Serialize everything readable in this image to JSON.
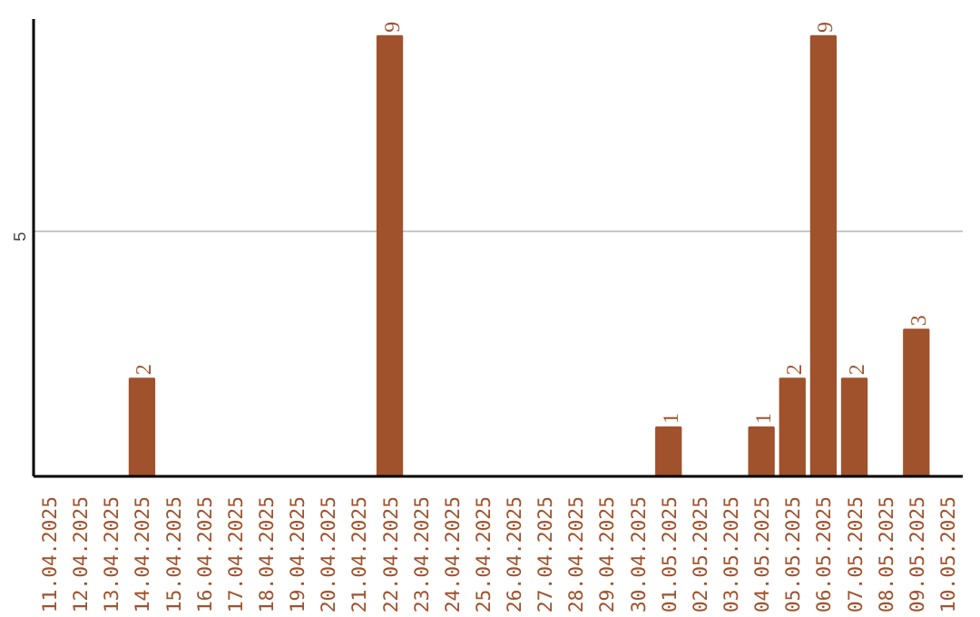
{
  "chart_data": {
    "type": "bar",
    "categories": [
      "11.04.2025",
      "12.04.2025",
      "13.04.2025",
      "14.04.2025",
      "15.04.2025",
      "16.04.2025",
      "17.04.2025",
      "18.04.2025",
      "19.04.2025",
      "20.04.2025",
      "21.04.2025",
      "22.04.2025",
      "23.04.2025",
      "24.04.2025",
      "25.04.2025",
      "26.04.2025",
      "27.04.2025",
      "28.04.2025",
      "29.04.2025",
      "30.04.2025",
      "01.05.2025",
      "02.05.2025",
      "03.05.2025",
      "04.05.2025",
      "05.05.2025",
      "06.05.2025",
      "07.05.2025",
      "08.05.2025",
      "09.05.2025",
      "10.05.2025"
    ],
    "values": [
      0,
      0,
      0,
      2,
      0,
      0,
      0,
      0,
      0,
      0,
      0,
      9,
      0,
      0,
      0,
      0,
      0,
      0,
      0,
      0,
      1,
      0,
      0,
      1,
      2,
      9,
      2,
      0,
      3,
      0
    ],
    "value_labels": [
      null,
      null,
      null,
      "2",
      null,
      null,
      null,
      null,
      null,
      null,
      null,
      "9",
      null,
      null,
      null,
      null,
      null,
      null,
      null,
      null,
      "1",
      null,
      null,
      "1",
      "2",
      "9",
      "2",
      null,
      "3",
      null
    ],
    "color": "#a0522d",
    "ylim": [
      0,
      9.35
    ],
    "yticks": [
      5
    ],
    "grid": "y"
  }
}
